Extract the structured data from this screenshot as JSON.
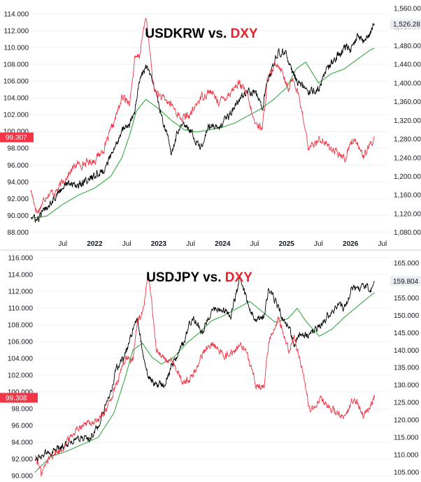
{
  "colors": {
    "dxy": "#f23645",
    "fx": "#000000",
    "ma": "#22a32d",
    "grid": "#eef0f3",
    "axis_text": "#131722",
    "last_badge_bg": "#e9ecf1",
    "separator": "#c9ccd2"
  },
  "chart_data": [
    {
      "type": "line",
      "title": "USDKRW vs. DXY",
      "title_parts": [
        "USDKRW vs.",
        "DXY"
      ],
      "x_ticks": [
        {
          "label": "Jul",
          "bold": false
        },
        {
          "label": "2022",
          "bold": true
        },
        {
          "label": "Jul",
          "bold": false
        },
        {
          "label": "2023",
          "bold": true
        },
        {
          "label": "Jul",
          "bold": false
        },
        {
          "label": "2024",
          "bold": true
        },
        {
          "label": "Jul",
          "bold": false
        },
        {
          "label": "2025",
          "bold": true
        },
        {
          "label": "Jul",
          "bold": false
        },
        {
          "label": "2026",
          "bold": true
        },
        {
          "label": "Jul",
          "bold": false
        }
      ],
      "x_range": [
        0,
        11.2
      ],
      "x_tick_positions": [
        1,
        2,
        3,
        4,
        5,
        6,
        7,
        8,
        9,
        10,
        11
      ],
      "left_axis": {
        "range": [
          87.2,
          115.0
        ],
        "ticks": [
          "88.000",
          "90.000",
          "92.000",
          "94.000",
          "96.000",
          "98.000",
          "100.000",
          "102.000",
          "104.000",
          "106.000",
          "108.000",
          "110.000",
          "112.000",
          "114.000"
        ],
        "tick_values": [
          88,
          90,
          92,
          94,
          96,
          98,
          100,
          102,
          104,
          106,
          108,
          110,
          112,
          114
        ]
      },
      "right_axis": {
        "range": [
          1066,
          1566
        ],
        "ticks": [
          "1,080.00",
          "1,120.00",
          "1,160.00",
          "1,200.00",
          "1,240.00",
          "1,280.00",
          "1,320.00",
          "1,360.00",
          "1,400.00",
          "1,440.00",
          "1,480.00",
          "1,520.00",
          "1,560.00"
        ],
        "tick_values": [
          1080,
          1120,
          1160,
          1200,
          1240,
          1280,
          1320,
          1360,
          1400,
          1440,
          1480,
          1520,
          1560
        ]
      },
      "last_values": {
        "left": "99.307",
        "right": "1,526.28"
      },
      "series": [
        {
          "name": "DXY",
          "axis": "left",
          "x": [
            0.0,
            0.2,
            0.5,
            0.8,
            1.1,
            1.4,
            1.7,
            2.0,
            2.3,
            2.6,
            2.85,
            3.1,
            3.25,
            3.4,
            3.6,
            3.85,
            4.1,
            4.4,
            4.7,
            5.0,
            5.3,
            5.6,
            5.9,
            6.2,
            6.5,
            6.75,
            7.0,
            7.25,
            7.4,
            7.7,
            7.9,
            8.05,
            8.2,
            8.4,
            8.7,
            9.0,
            9.3,
            9.6,
            9.85,
            10.0,
            10.2,
            10.4,
            10.6,
            10.75
          ],
          "y": [
            93.0,
            90.3,
            92.5,
            92.9,
            94.5,
            96.0,
            96.2,
            96.6,
            98.0,
            101.0,
            104.0,
            103.6,
            108.5,
            109.0,
            113.8,
            105.0,
            104.0,
            103.2,
            101.5,
            102.0,
            104.0,
            104.8,
            103.5,
            104.5,
            105.8,
            104.5,
            101.0,
            100.5,
            106.0,
            108.3,
            107.0,
            104.8,
            106.5,
            104.0,
            97.8,
            99.2,
            98.3,
            97.3,
            96.8,
            98.8,
            99.0,
            96.9,
            98.2,
            99.3
          ]
        },
        {
          "name": "USDKRW",
          "axis": "right",
          "x": [
            0.0,
            0.2,
            0.5,
            0.8,
            1.1,
            1.4,
            1.7,
            2.0,
            2.3,
            2.6,
            2.85,
            3.1,
            3.25,
            3.4,
            3.6,
            3.85,
            4.1,
            4.4,
            4.7,
            5.0,
            5.3,
            5.6,
            5.9,
            6.2,
            6.5,
            6.75,
            7.0,
            7.25,
            7.4,
            7.7,
            7.9,
            8.05,
            8.2,
            8.4,
            8.7,
            9.0,
            9.3,
            9.6,
            9.85,
            10.0,
            10.2,
            10.4,
            10.6,
            10.75
          ],
          "y": [
            1115,
            1105,
            1135,
            1160,
            1185,
            1180,
            1190,
            1200,
            1215,
            1255,
            1300,
            1310,
            1340,
            1405,
            1435,
            1395,
            1330,
            1250,
            1320,
            1300,
            1260,
            1310,
            1300,
            1330,
            1360,
            1385,
            1380,
            1350,
            1400,
            1460,
            1470,
            1450,
            1420,
            1400,
            1380,
            1390,
            1430,
            1460,
            1480,
            1470,
            1500,
            1490,
            1505,
            1526
          ]
        },
        {
          "name": "Moving average",
          "axis": "right",
          "x": [
            0.0,
            0.5,
            1.0,
            1.5,
            2.0,
            2.5,
            2.85,
            3.1,
            3.3,
            3.6,
            4.0,
            4.4,
            4.8,
            5.2,
            5.6,
            6.0,
            6.4,
            6.8,
            7.2,
            7.6,
            8.0,
            8.3,
            8.6,
            9.0,
            9.4,
            9.8,
            10.2,
            10.6,
            10.75
          ],
          "y": [
            1110,
            1115,
            1140,
            1160,
            1175,
            1200,
            1240,
            1290,
            1340,
            1365,
            1345,
            1320,
            1300,
            1295,
            1300,
            1305,
            1315,
            1330,
            1345,
            1365,
            1390,
            1430,
            1445,
            1400,
            1420,
            1430,
            1450,
            1470,
            1475
          ]
        }
      ]
    },
    {
      "type": "line",
      "title": "USDJPY vs. DXY",
      "title_parts": [
        "USDJPY vs.",
        "DXY"
      ],
      "x_ticks": [],
      "x_range": [
        0,
        11.2
      ],
      "left_axis": {
        "range": [
          89.6,
          116.4
        ],
        "ticks": [
          "90.000",
          "92.000",
          "94.000",
          "96.000",
          "98.000",
          "100.000",
          "102.000",
          "104.000",
          "106.000",
          "108.000",
          "110.000",
          "112.000",
          "114.000",
          "116.000"
        ],
        "tick_values": [
          90,
          92,
          94,
          96,
          98,
          100,
          102,
          104,
          106,
          108,
          110,
          112,
          114,
          116
        ]
      },
      "right_axis": {
        "range": [
          103.0,
          167.5
        ],
        "ticks": [
          "105.000",
          "110.000",
          "115.000",
          "120.000",
          "125.000",
          "130.000",
          "135.000",
          "140.000",
          "145.000",
          "150.000",
          "155.000",
          "160.000",
          "165.000"
        ],
        "tick_values": [
          105,
          110,
          115,
          120,
          125,
          130,
          135,
          140,
          145,
          150,
          155,
          160,
          165
        ]
      },
      "last_values": {
        "left": "99.308",
        "right": "159.804"
      },
      "series": [
        {
          "name": "DXY",
          "axis": "left",
          "x": [
            0.0,
            0.2,
            0.5,
            0.8,
            1.1,
            1.4,
            1.7,
            2.0,
            2.3,
            2.6,
            2.85,
            3.1,
            3.25,
            3.4,
            3.6,
            3.85,
            4.1,
            4.4,
            4.7,
            5.0,
            5.3,
            5.6,
            5.9,
            6.2,
            6.5,
            6.75,
            7.0,
            7.25,
            7.4,
            7.7,
            7.9,
            8.05,
            8.2,
            8.4,
            8.7,
            9.0,
            9.3,
            9.6,
            9.85,
            10.0,
            10.2,
            10.4,
            10.6,
            10.75
          ],
          "y": [
            92.5,
            90.3,
            92.5,
            93.0,
            94.5,
            96.0,
            96.3,
            96.6,
            98.2,
            101.0,
            104.0,
            103.8,
            108.5,
            109.5,
            114.0,
            105.0,
            104.0,
            103.2,
            101.0,
            102.0,
            104.5,
            106.0,
            104.5,
            104.5,
            105.5,
            104.0,
            101.0,
            100.5,
            106.0,
            108.8,
            107.0,
            104.8,
            106.5,
            103.8,
            97.8,
            99.2,
            98.3,
            97.3,
            96.8,
            98.8,
            99.0,
            96.9,
            98.2,
            99.3
          ]
        },
        {
          "name": "USDJPY",
          "axis": "right",
          "x": [
            0.0,
            0.2,
            0.5,
            0.8,
            1.1,
            1.4,
            1.7,
            2.0,
            2.3,
            2.6,
            2.85,
            3.1,
            3.25,
            3.4,
            3.6,
            3.85,
            4.1,
            4.4,
            4.7,
            5.0,
            5.3,
            5.6,
            5.9,
            6.2,
            6.5,
            6.75,
            7.0,
            7.25,
            7.4,
            7.7,
            7.9,
            8.05,
            8.2,
            8.4,
            8.7,
            9.0,
            9.3,
            9.6,
            9.85,
            10.0,
            10.2,
            10.4,
            10.6,
            10.75
          ],
          "y": [
            109.0,
            110.0,
            110.5,
            112.0,
            114.0,
            115.0,
            114.5,
            118.0,
            125.0,
            135.0,
            138.0,
            146.0,
            148.5,
            140.0,
            132.0,
            130.0,
            130.5,
            137.0,
            142.0,
            150.0,
            145.0,
            152.0,
            151.5,
            150.0,
            161.0,
            153.0,
            148.0,
            150.0,
            158.0,
            152.0,
            148.0,
            146.0,
            142.0,
            145.0,
            144.0,
            147.0,
            150.0,
            153.0,
            152.0,
            158.0,
            157.0,
            159.0,
            157.0,
            159.8
          ]
        },
        {
          "name": "Moving average",
          "axis": "right",
          "x": [
            0.0,
            0.5,
            1.0,
            1.5,
            2.0,
            2.5,
            2.85,
            3.1,
            3.4,
            3.7,
            4.0,
            4.4,
            4.8,
            5.2,
            5.6,
            6.0,
            6.4,
            6.8,
            7.2,
            7.6,
            8.0,
            8.3,
            8.6,
            9.0,
            9.4,
            9.8,
            10.2,
            10.6,
            10.75
          ],
          "y": [
            105.0,
            109.5,
            111.0,
            113.0,
            115.0,
            122.0,
            132.0,
            140.0,
            142.0,
            138.0,
            136.0,
            138.0,
            142.0,
            145.0,
            148.5,
            150.0,
            152.0,
            154.0,
            151.0,
            148.0,
            149.0,
            152.0,
            148.0,
            144.0,
            146.0,
            149.5,
            152.5,
            155.5,
            156.5
          ]
        }
      ]
    }
  ]
}
